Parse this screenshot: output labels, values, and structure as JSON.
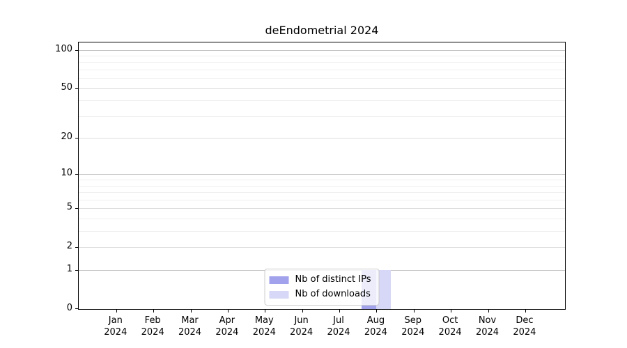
{
  "window": {
    "background": "#ffffff"
  },
  "chart_data": {
    "type": "bar",
    "title": "deEndometrial 2024",
    "categories": [
      "Jan 2024",
      "Feb 2024",
      "Mar 2024",
      "Apr 2024",
      "May 2024",
      "Jun 2024",
      "Jul 2024",
      "Aug 2024",
      "Sep 2024",
      "Oct 2024",
      "Nov 2024",
      "Dec 2024"
    ],
    "series": [
      {
        "name": "Nb of distinct IPs",
        "color": "#a2a2ec",
        "values": [
          0,
          0,
          0,
          0,
          0,
          0,
          0,
          1,
          0,
          0,
          0,
          0
        ]
      },
      {
        "name": "Nb of downloads",
        "color": "#d7d7f7",
        "values": [
          0,
          0,
          0,
          0,
          0,
          0,
          0,
          1,
          0,
          0,
          0,
          0
        ]
      }
    ],
    "xlabel": "",
    "ylabel": "",
    "yscale": "log10(1 + v)",
    "ylim": [
      0,
      114
    ],
    "yticks": [
      0,
      1,
      2,
      5,
      10,
      20,
      50,
      100
    ],
    "y_major_gridlines": [
      1,
      10,
      100
    ],
    "y_mid_gridlines": [
      2,
      5,
      20,
      50
    ],
    "y_minor_gridlines": [
      3,
      4,
      6,
      7,
      8,
      9,
      30,
      40,
      60,
      70,
      80,
      90
    ],
    "grid": "horizontal",
    "legend_position": "lower center",
    "legend": [
      "Nb of distinct IPs",
      "Nb of downloads"
    ],
    "grid_colors": {
      "major": "#c3c3c3",
      "mid": "#dddddd",
      "minor": "#efefef"
    }
  }
}
